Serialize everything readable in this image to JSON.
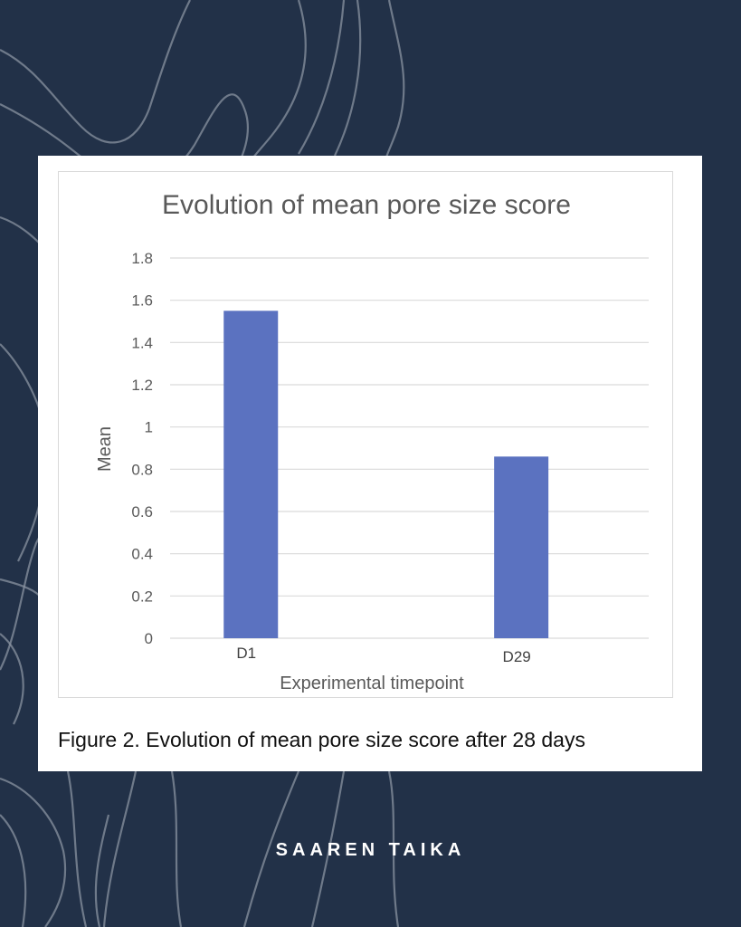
{
  "colors": {
    "background": "#223148",
    "background_lines": "#8a93a0",
    "card": "#ffffff",
    "bar": "#5b72c0",
    "grid": "#d9d9d9",
    "axis_text": "#595959"
  },
  "chart_data": {
    "type": "bar",
    "title": "Evolution of mean pore size score",
    "xlabel": "Experimental timepoint",
    "ylabel": "Mean",
    "categories": [
      "D1",
      "D29"
    ],
    "series": [
      {
        "values": [
          1.55,
          0.86
        ]
      }
    ],
    "ylim": [
      0,
      1.8
    ],
    "yticks": [
      "0",
      "0.2",
      "0.4",
      "0.6",
      "0.8",
      "1",
      "1.2",
      "1.4",
      "1.6",
      "1.8"
    ],
    "grid": true,
    "legend": "none"
  },
  "caption": "Figure 2. Evolution of mean pore size score after 28 days",
  "brand": "SAAREN TAIKA"
}
